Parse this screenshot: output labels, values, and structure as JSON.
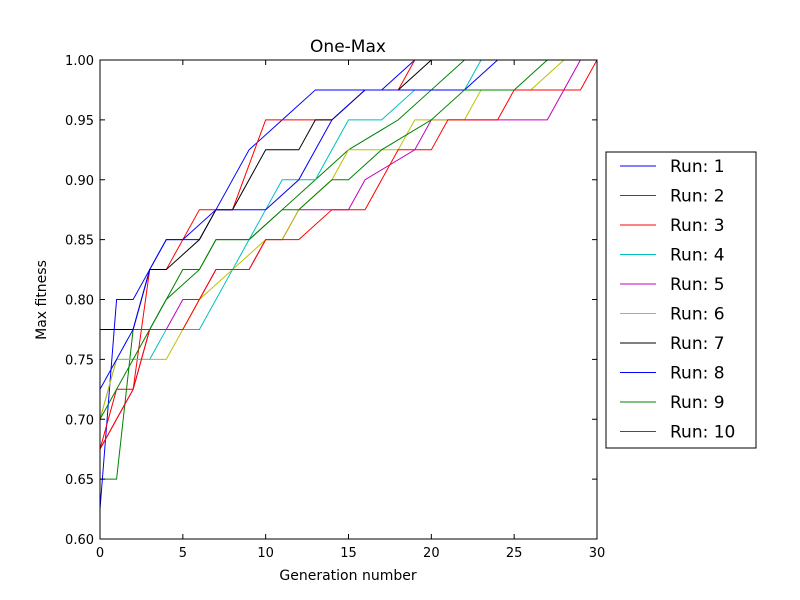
{
  "chart_data": {
    "type": "line",
    "title": "One-Max",
    "xlabel": "Generation number",
    "ylabel": "Max fitness",
    "xlim": [
      0,
      30
    ],
    "ylim": [
      0.6,
      1.0
    ],
    "xticks": [
      "0",
      "5",
      "10",
      "15",
      "20",
      "25",
      "30"
    ],
    "yticks": [
      "0.60",
      "0.65",
      "0.70",
      "0.75",
      "0.80",
      "0.85",
      "0.90",
      "0.95",
      "1.00"
    ],
    "grid": false,
    "legend_position": "right-outside",
    "series": [
      {
        "name": "Run: 1",
        "color": "#0000ff",
        "points": [
          [
            0,
            0.625
          ],
          [
            1,
            0.8
          ],
          [
            2,
            0.8
          ],
          [
            3,
            0.825
          ],
          [
            4,
            0.85
          ],
          [
            6,
            0.85
          ],
          [
            7,
            0.875
          ],
          [
            9,
            0.925
          ],
          [
            11,
            0.95
          ],
          [
            13,
            0.975
          ],
          [
            15,
            0.975
          ],
          [
            17,
            0.975
          ],
          [
            19,
            1.0
          ]
        ]
      },
      {
        "name": "Run: 2",
        "color": "#008000",
        "points": [
          [
            0,
            0.65
          ],
          [
            1,
            0.65
          ],
          [
            2,
            0.775
          ],
          [
            3,
            0.775
          ],
          [
            4,
            0.8
          ],
          [
            6,
            0.825
          ],
          [
            7,
            0.85
          ],
          [
            9,
            0.85
          ],
          [
            11,
            0.875
          ],
          [
            13,
            0.9
          ],
          [
            15,
            0.925
          ],
          [
            18,
            0.95
          ],
          [
            20,
            0.975
          ],
          [
            22,
            1.0
          ]
        ]
      },
      {
        "name": "Run: 3",
        "color": "#ff0000",
        "points": [
          [
            0,
            0.675
          ],
          [
            1,
            0.725
          ],
          [
            2,
            0.725
          ],
          [
            3,
            0.825
          ],
          [
            4,
            0.825
          ],
          [
            6,
            0.875
          ],
          [
            8,
            0.875
          ],
          [
            10,
            0.95
          ],
          [
            12,
            0.95
          ],
          [
            14,
            0.95
          ],
          [
            16,
            0.975
          ],
          [
            18,
            0.975
          ],
          [
            19,
            1.0
          ]
        ]
      },
      {
        "name": "Run: 4",
        "color": "#00bfbf",
        "points": [
          [
            0,
            0.7
          ],
          [
            1,
            0.75
          ],
          [
            3,
            0.75
          ],
          [
            4,
            0.775
          ],
          [
            6,
            0.775
          ],
          [
            8,
            0.825
          ],
          [
            10,
            0.875
          ],
          [
            11,
            0.9
          ],
          [
            13,
            0.9
          ],
          [
            15,
            0.95
          ],
          [
            17,
            0.95
          ],
          [
            19,
            0.975
          ],
          [
            22,
            0.975
          ],
          [
            23,
            1.0
          ]
        ]
      },
      {
        "name": "Run: 5",
        "color": "#bf00bf",
        "points": [
          [
            0,
            0.675
          ],
          [
            2,
            0.725
          ],
          [
            3,
            0.775
          ],
          [
            4,
            0.775
          ],
          [
            5,
            0.8
          ],
          [
            6,
            0.8
          ],
          [
            7,
            0.825
          ],
          [
            9,
            0.825
          ],
          [
            10,
            0.85
          ],
          [
            11,
            0.85
          ],
          [
            12,
            0.875
          ],
          [
            15,
            0.875
          ],
          [
            16,
            0.9
          ],
          [
            19,
            0.925
          ],
          [
            20,
            0.95
          ],
          [
            27,
            0.95
          ],
          [
            29,
            1.0
          ]
        ]
      },
      {
        "name": "Run: 6",
        "color": "#bfbf00",
        "points": [
          [
            0,
            0.7
          ],
          [
            1,
            0.75
          ],
          [
            4,
            0.75
          ],
          [
            5,
            0.775
          ],
          [
            6,
            0.8
          ],
          [
            8,
            0.825
          ],
          [
            10,
            0.85
          ],
          [
            11,
            0.85
          ],
          [
            12,
            0.875
          ],
          [
            14,
            0.9
          ],
          [
            15,
            0.925
          ],
          [
            18,
            0.925
          ],
          [
            19,
            0.95
          ],
          [
            22,
            0.95
          ],
          [
            23,
            0.975
          ],
          [
            26,
            0.975
          ],
          [
            28,
            1.0
          ]
        ]
      },
      {
        "name": "Run: 7",
        "color": "#000000",
        "points": [
          [
            0,
            0.775
          ],
          [
            2,
            0.775
          ],
          [
            3,
            0.825
          ],
          [
            4,
            0.825
          ],
          [
            6,
            0.85
          ],
          [
            7,
            0.875
          ],
          [
            8,
            0.875
          ],
          [
            10,
            0.925
          ],
          [
            12,
            0.925
          ],
          [
            13,
            0.95
          ],
          [
            14,
            0.95
          ],
          [
            16,
            0.975
          ],
          [
            18,
            0.975
          ],
          [
            20,
            1.0
          ]
        ]
      },
      {
        "name": "Run: 8",
        "color": "#0000ff",
        "points": [
          [
            0,
            0.725
          ],
          [
            2,
            0.775
          ],
          [
            3,
            0.825
          ],
          [
            4,
            0.85
          ],
          [
            5,
            0.85
          ],
          [
            7,
            0.875
          ],
          [
            10,
            0.875
          ],
          [
            12,
            0.9
          ],
          [
            14,
            0.95
          ],
          [
            16,
            0.975
          ],
          [
            20,
            0.975
          ],
          [
            22,
            0.975
          ],
          [
            24,
            1.0
          ]
        ]
      },
      {
        "name": "Run: 9",
        "color": "#008000",
        "points": [
          [
            0,
            0.7
          ],
          [
            2,
            0.75
          ],
          [
            4,
            0.8
          ],
          [
            5,
            0.825
          ],
          [
            6,
            0.825
          ],
          [
            7,
            0.85
          ],
          [
            9,
            0.85
          ],
          [
            11,
            0.875
          ],
          [
            12,
            0.875
          ],
          [
            14,
            0.9
          ],
          [
            15,
            0.9
          ],
          [
            17,
            0.925
          ],
          [
            20,
            0.95
          ],
          [
            22,
            0.975
          ],
          [
            25,
            0.975
          ],
          [
            27,
            1.0
          ]
        ]
      },
      {
        "name": "Run: 10",
        "color": "#ff0000",
        "points": [
          [
            0,
            0.675
          ],
          [
            2,
            0.725
          ],
          [
            3,
            0.775
          ],
          [
            5,
            0.775
          ],
          [
            7,
            0.825
          ],
          [
            9,
            0.825
          ],
          [
            10,
            0.85
          ],
          [
            12,
            0.85
          ],
          [
            14,
            0.875
          ],
          [
            16,
            0.875
          ],
          [
            18,
            0.925
          ],
          [
            20,
            0.925
          ],
          [
            21,
            0.95
          ],
          [
            24,
            0.95
          ],
          [
            25,
            0.975
          ],
          [
            29,
            0.975
          ],
          [
            30,
            1.0
          ]
        ]
      }
    ]
  }
}
